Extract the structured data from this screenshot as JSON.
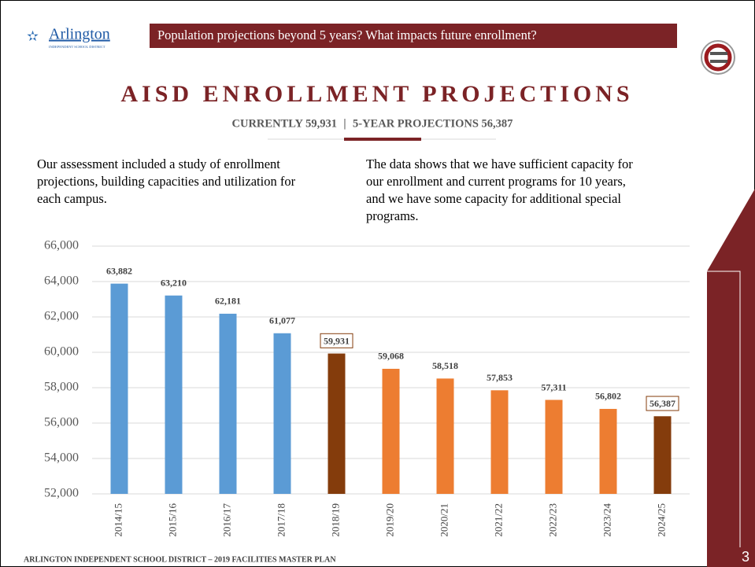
{
  "header": {
    "logo": "Arlington",
    "logo_sub": "INDEPENDENT SCHOOL DISTRICT",
    "banner": "Population projections beyond 5 years? What impacts future enrollment?"
  },
  "title": "AISD ENROLLMENT PROJECTIONS",
  "subtitle": {
    "left": "CURRENTLY 59,931",
    "separator": "|",
    "right": "5-YEAR PROJECTIONS 56,387"
  },
  "paragraphs": {
    "left": [
      "Our assessment included a study of enrollment",
      "projections, building capacities and utilization for",
      "each campus."
    ],
    "right": [
      "The data shows that we have sufficient capacity for",
      "our enrollment and current programs for 10 years,",
      "and we have some capacity for additional special",
      "programs."
    ]
  },
  "chart_data": {
    "type": "bar",
    "categories": [
      "2014/15",
      "2015/16",
      "2016/17",
      "2017/18",
      "2018/19",
      "2019/20",
      "2020/21",
      "2021/22",
      "2022/23",
      "2023/24",
      "2024/25"
    ],
    "values": [
      63882,
      63210,
      62181,
      61077,
      59931,
      59068,
      58518,
      57853,
      57311,
      56802,
      56387
    ],
    "value_labels": [
      "63,882",
      "63,210",
      "62,181",
      "61,077",
      "59,931",
      "59,068",
      "58,518",
      "57,853",
      "57,311",
      "56,802",
      "56,387"
    ],
    "colors": [
      "#5b9bd5",
      "#5b9bd5",
      "#5b9bd5",
      "#5b9bd5",
      "#843c0c",
      "#ed7d31",
      "#ed7d31",
      "#ed7d31",
      "#ed7d31",
      "#ed7d31",
      "#843c0c"
    ],
    "boxed": [
      false,
      false,
      false,
      false,
      true,
      false,
      false,
      false,
      false,
      false,
      true
    ],
    "ylim": [
      52000,
      66000
    ],
    "yticks": [
      {
        "value": 52000,
        "label": "52,000"
      },
      {
        "value": 54000,
        "label": "54,000"
      },
      {
        "value": 56000,
        "label": "56,000"
      },
      {
        "value": 58000,
        "label": "58,000"
      },
      {
        "value": 60000,
        "label": "60,000"
      },
      {
        "value": 62000,
        "label": "62,000"
      },
      {
        "value": 64000,
        "label": "64,000"
      },
      {
        "value": 66000,
        "label": "66,000"
      }
    ],
    "grid": true
  },
  "footer": "ARLINGTON INDEPENDENT SCHOOL DISTRICT – 2019 FACILITIES MASTER PLAN",
  "page_number": "3"
}
